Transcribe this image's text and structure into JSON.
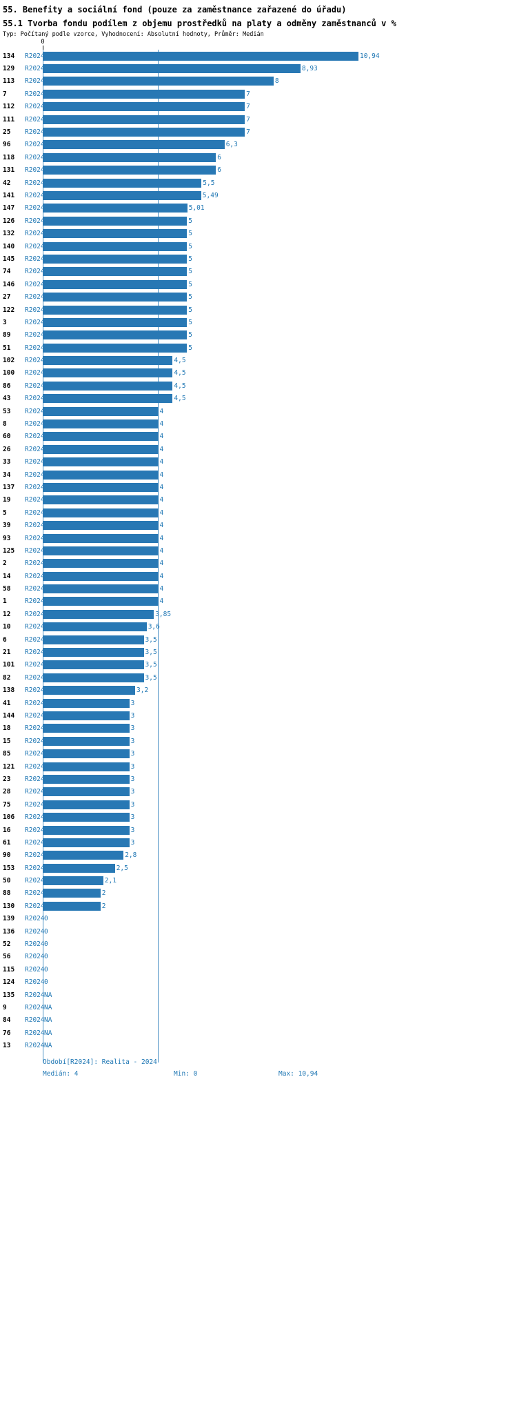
{
  "header": {
    "title": "55. Benefity a sociální fond (pouze za zaměstnance zařazené do úřadu)",
    "subtitle": "55.1 Tvorba fondu podílem z objemu prostředků na platy a odměny zaměstnanců v %",
    "meta": "Typ: Počítaný podle vzorce, Vyhodnocení: Absolutní hodnoty, Průměr: Medián"
  },
  "chart_data": {
    "type": "bar",
    "orientation": "horizontal",
    "title": "55.1 Tvorba fondu podílem z objemu prostředků na platy a odměny zaměstnanců v %",
    "xlabel": "",
    "ylabel": "",
    "xlim": [
      0,
      10.94
    ],
    "axis_top_tick": "0",
    "period_label": "R2024",
    "median": 4,
    "legend": "none",
    "grid": "off",
    "colors": {
      "bar": "#2878b4",
      "value_text": "#1f77b4",
      "median_line": "#4a90c4"
    },
    "rows": [
      {
        "id": "134",
        "value": 10.94,
        "label": "10,94"
      },
      {
        "id": "129",
        "value": 8.93,
        "label": "8,93"
      },
      {
        "id": "113",
        "value": 8,
        "label": "8"
      },
      {
        "id": "7",
        "value": 7,
        "label": "7"
      },
      {
        "id": "112",
        "value": 7,
        "label": "7"
      },
      {
        "id": "111",
        "value": 7,
        "label": "7"
      },
      {
        "id": "25",
        "value": 7,
        "label": "7"
      },
      {
        "id": "96",
        "value": 6.3,
        "label": "6,3"
      },
      {
        "id": "118",
        "value": 6,
        "label": "6"
      },
      {
        "id": "131",
        "value": 6,
        "label": "6"
      },
      {
        "id": "42",
        "value": 5.5,
        "label": "5,5"
      },
      {
        "id": "141",
        "value": 5.49,
        "label": "5,49"
      },
      {
        "id": "147",
        "value": 5.01,
        "label": "5,01"
      },
      {
        "id": "126",
        "value": 5,
        "label": "5"
      },
      {
        "id": "132",
        "value": 5,
        "label": "5"
      },
      {
        "id": "140",
        "value": 5,
        "label": "5"
      },
      {
        "id": "145",
        "value": 5,
        "label": "5"
      },
      {
        "id": "74",
        "value": 5,
        "label": "5"
      },
      {
        "id": "146",
        "value": 5,
        "label": "5"
      },
      {
        "id": "27",
        "value": 5,
        "label": "5"
      },
      {
        "id": "122",
        "value": 5,
        "label": "5"
      },
      {
        "id": "3",
        "value": 5,
        "label": "5"
      },
      {
        "id": "89",
        "value": 5,
        "label": "5"
      },
      {
        "id": "51",
        "value": 5,
        "label": "5"
      },
      {
        "id": "102",
        "value": 4.5,
        "label": "4,5"
      },
      {
        "id": "100",
        "value": 4.5,
        "label": "4,5"
      },
      {
        "id": "86",
        "value": 4.5,
        "label": "4,5"
      },
      {
        "id": "43",
        "value": 4.5,
        "label": "4,5"
      },
      {
        "id": "53",
        "value": 4,
        "label": "4"
      },
      {
        "id": "8",
        "value": 4,
        "label": "4"
      },
      {
        "id": "60",
        "value": 4,
        "label": "4"
      },
      {
        "id": "26",
        "value": 4,
        "label": "4"
      },
      {
        "id": "33",
        "value": 4,
        "label": "4"
      },
      {
        "id": "34",
        "value": 4,
        "label": "4"
      },
      {
        "id": "137",
        "value": 4,
        "label": "4"
      },
      {
        "id": "19",
        "value": 4,
        "label": "4"
      },
      {
        "id": "5",
        "value": 4,
        "label": "4"
      },
      {
        "id": "39",
        "value": 4,
        "label": "4"
      },
      {
        "id": "93",
        "value": 4,
        "label": "4"
      },
      {
        "id": "125",
        "value": 4,
        "label": "4"
      },
      {
        "id": "2",
        "value": 4,
        "label": "4"
      },
      {
        "id": "14",
        "value": 4,
        "label": "4"
      },
      {
        "id": "58",
        "value": 4,
        "label": "4"
      },
      {
        "id": "1",
        "value": 4,
        "label": "4"
      },
      {
        "id": "12",
        "value": 3.85,
        "label": "3,85"
      },
      {
        "id": "10",
        "value": 3.6,
        "label": "3,6"
      },
      {
        "id": "6",
        "value": 3.5,
        "label": "3,5"
      },
      {
        "id": "21",
        "value": 3.5,
        "label": "3,5"
      },
      {
        "id": "101",
        "value": 3.5,
        "label": "3,5"
      },
      {
        "id": "82",
        "value": 3.5,
        "label": "3,5"
      },
      {
        "id": "138",
        "value": 3.2,
        "label": "3,2"
      },
      {
        "id": "41",
        "value": 3,
        "label": "3"
      },
      {
        "id": "144",
        "value": 3,
        "label": "3"
      },
      {
        "id": "18",
        "value": 3,
        "label": "3"
      },
      {
        "id": "15",
        "value": 3,
        "label": "3"
      },
      {
        "id": "85",
        "value": 3,
        "label": "3"
      },
      {
        "id": "121",
        "value": 3,
        "label": "3"
      },
      {
        "id": "23",
        "value": 3,
        "label": "3"
      },
      {
        "id": "28",
        "value": 3,
        "label": "3"
      },
      {
        "id": "75",
        "value": 3,
        "label": "3"
      },
      {
        "id": "106",
        "value": 3,
        "label": "3"
      },
      {
        "id": "16",
        "value": 3,
        "label": "3"
      },
      {
        "id": "61",
        "value": 3,
        "label": "3"
      },
      {
        "id": "90",
        "value": 2.8,
        "label": "2,8"
      },
      {
        "id": "153",
        "value": 2.5,
        "label": "2,5"
      },
      {
        "id": "50",
        "value": 2.1,
        "label": "2,1"
      },
      {
        "id": "88",
        "value": 2,
        "label": "2"
      },
      {
        "id": "130",
        "value": 2,
        "label": "2"
      },
      {
        "id": "139",
        "value": 0,
        "label": "0"
      },
      {
        "id": "136",
        "value": 0,
        "label": "0"
      },
      {
        "id": "52",
        "value": 0,
        "label": "0"
      },
      {
        "id": "56",
        "value": 0,
        "label": "0"
      },
      {
        "id": "115",
        "value": 0,
        "label": "0"
      },
      {
        "id": "124",
        "value": 0,
        "label": "0"
      },
      {
        "id": "135",
        "value": null,
        "label": "NA"
      },
      {
        "id": "9",
        "value": null,
        "label": "NA"
      },
      {
        "id": "84",
        "value": null,
        "label": "NA"
      },
      {
        "id": "76",
        "value": null,
        "label": "NA"
      },
      {
        "id": "13",
        "value": null,
        "label": "NA"
      }
    ]
  },
  "footer": {
    "period": "Období[R2024]: Realita - 2024",
    "median": "Medián: 4",
    "min": "Min: 0",
    "max": "Max: 10,94"
  }
}
